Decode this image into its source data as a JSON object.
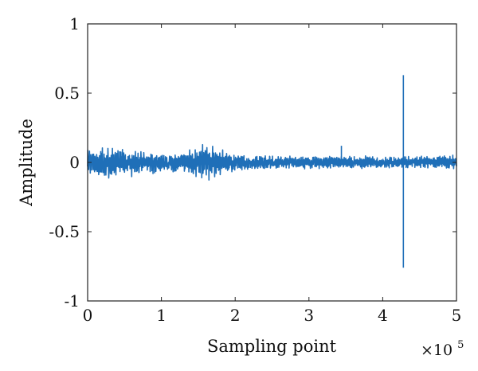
{
  "chart_data": {
    "type": "line",
    "xlabel": "Sampling point",
    "ylabel": "Amplitude",
    "x_multiplier_text": "×10",
    "x_multiplier_exponent": "5",
    "xlim": [
      0,
      500000
    ],
    "ylim": [
      -1,
      1
    ],
    "x_ticks": [
      0,
      100000,
      200000,
      300000,
      400000,
      500000
    ],
    "x_tick_labels": [
      "0",
      "1",
      "2",
      "3",
      "4",
      "5"
    ],
    "y_ticks": [
      -1,
      -0.5,
      0,
      0.5,
      1
    ],
    "y_tick_labels": [
      "-1",
      "-0.5",
      "0",
      "0.5",
      "1"
    ],
    "grid": false,
    "line_color": "#1f6fb8",
    "series": [
      {
        "envelope": [
          {
            "x": 0,
            "min": -0.1,
            "max": 0.12
          },
          {
            "x": 15000,
            "min": -0.15,
            "max": 0.12
          },
          {
            "x": 40000,
            "min": -0.12,
            "max": 0.11
          },
          {
            "x": 75000,
            "min": -0.09,
            "max": 0.08
          },
          {
            "x": 110000,
            "min": -0.08,
            "max": 0.07
          },
          {
            "x": 135000,
            "min": -0.09,
            "max": 0.09
          },
          {
            "x": 155000,
            "min": -0.15,
            "max": 0.15
          },
          {
            "x": 170000,
            "min": -0.13,
            "max": 0.14
          },
          {
            "x": 190000,
            "min": -0.08,
            "max": 0.08
          },
          {
            "x": 220000,
            "min": -0.06,
            "max": 0.06
          },
          {
            "x": 280000,
            "min": -0.055,
            "max": 0.055
          },
          {
            "x": 340000,
            "min": -0.05,
            "max": 0.05
          },
          {
            "x": 400000,
            "min": -0.05,
            "max": 0.05
          },
          {
            "x": 460000,
            "min": -0.05,
            "max": 0.05
          },
          {
            "x": 500000,
            "min": -0.06,
            "max": 0.06
          }
        ],
        "spikes": [
          {
            "x": 344000,
            "min": -0.02,
            "max": 0.12
          },
          {
            "x": 428000,
            "min": -0.76,
            "max": 0.63
          }
        ]
      }
    ]
  }
}
